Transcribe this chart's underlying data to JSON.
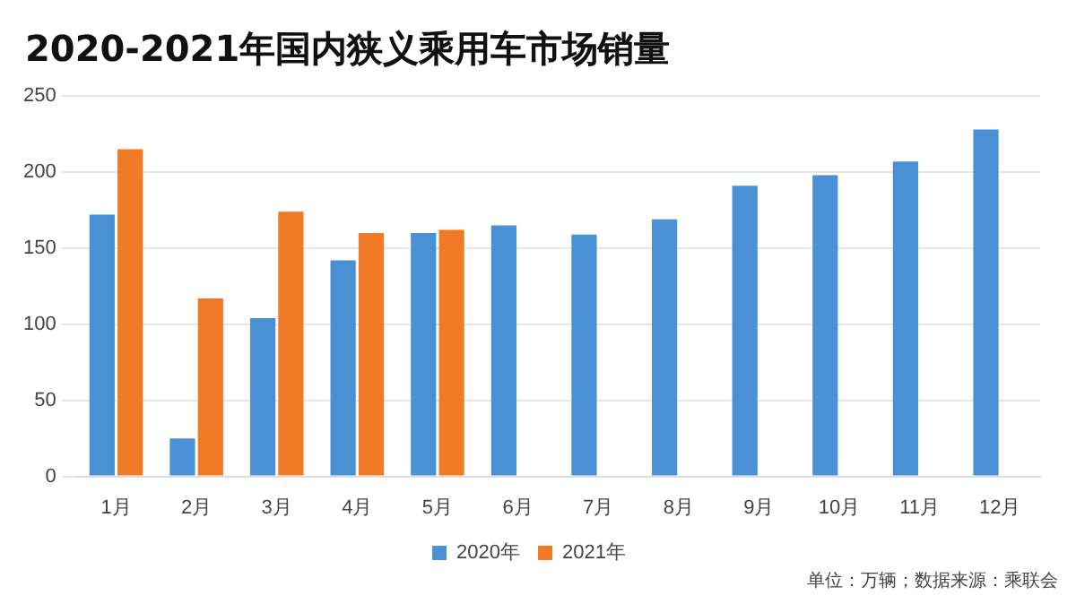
{
  "chart_data": {
    "type": "bar",
    "title": "2020-2021年国内狭义乘用车市场销量",
    "categories": [
      "1月",
      "2月",
      "3月",
      "4月",
      "5月",
      "6月",
      "7月",
      "8月",
      "9月",
      "10月",
      "11月",
      "12月"
    ],
    "series": [
      {
        "name": "2020年",
        "color": "#4a90d4",
        "values": [
          172,
          25,
          104,
          142,
          160,
          165,
          159,
          169,
          191,
          198,
          207,
          228
        ]
      },
      {
        "name": "2021年",
        "color": "#f07a26",
        "values": [
          215,
          117,
          174,
          160,
          162,
          null,
          null,
          null,
          null,
          null,
          null,
          null
        ]
      }
    ],
    "ylim": [
      0,
      250
    ],
    "yticks": [
      0,
      50,
      100,
      150,
      200,
      250
    ],
    "grid": "y",
    "legend": "bottom",
    "annotations": [
      "单位：万辆；数据来源：乘联会"
    ]
  }
}
